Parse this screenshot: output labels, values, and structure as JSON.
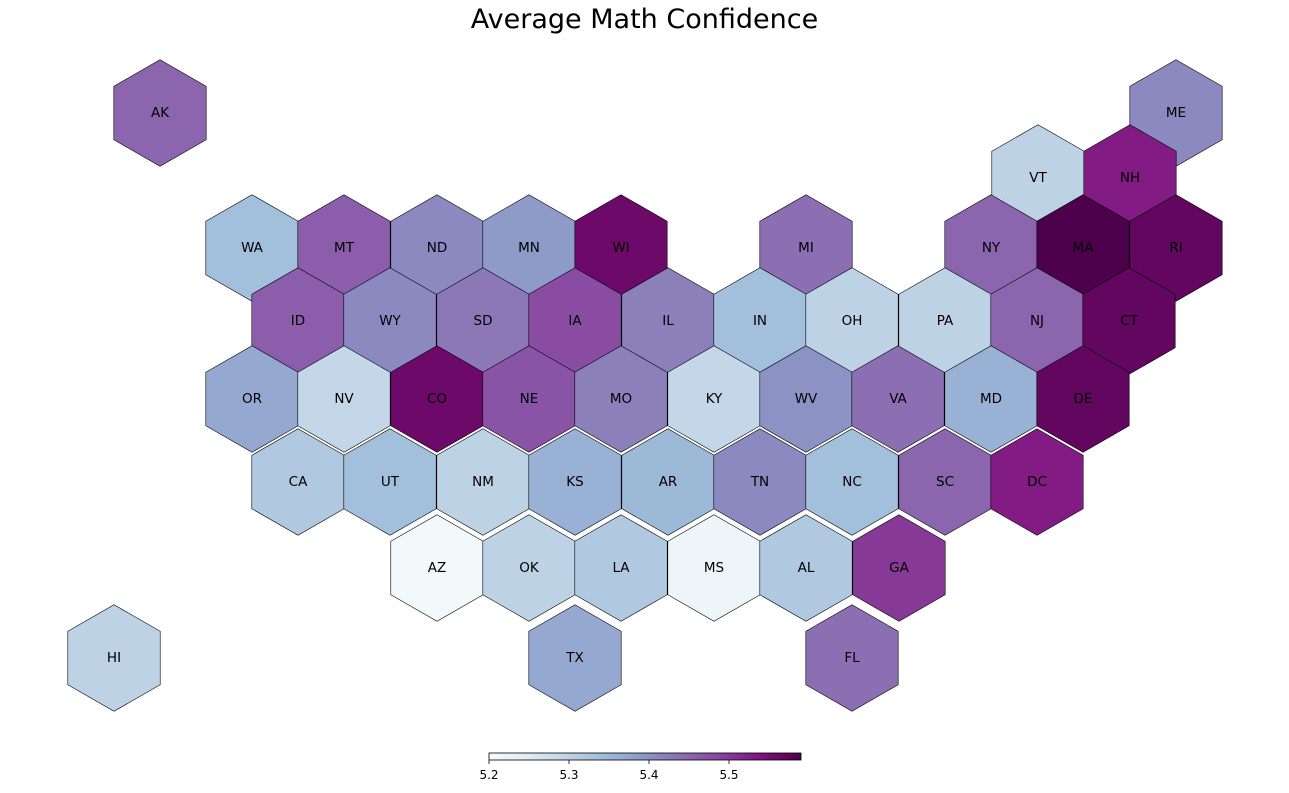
{
  "title": "Average Math Confidence",
  "map_data": {
    "type": "hex-tile-choropleth",
    "color_scale": {
      "colormap": "BuPu",
      "min": 5.2,
      "max": 5.59,
      "ticks": [
        5.2,
        5.3,
        5.4,
        5.5
      ],
      "tick_labels": [
        "5.2",
        "5.3",
        "5.4",
        "5.5"
      ],
      "stops": [
        "#f7fcfd",
        "#e0ecf4",
        "#bfd3e6",
        "#9ebcda",
        "#8c96c6",
        "#8c6bb1",
        "#88419d",
        "#810f7c",
        "#4d004b"
      ]
    },
    "states": [
      {
        "abbr": "AK",
        "value": 5.45
      },
      {
        "abbr": "ME",
        "value": 5.41
      },
      {
        "abbr": "VT",
        "value": 5.3
      },
      {
        "abbr": "NH",
        "value": 5.53
      },
      {
        "abbr": "WA",
        "value": 5.34
      },
      {
        "abbr": "MT",
        "value": 5.46
      },
      {
        "abbr": "ND",
        "value": 5.41
      },
      {
        "abbr": "MN",
        "value": 5.39
      },
      {
        "abbr": "WI",
        "value": 5.56
      },
      {
        "abbr": "MI",
        "value": 5.44
      },
      {
        "abbr": "NY",
        "value": 5.45
      },
      {
        "abbr": "MA",
        "value": 5.59
      },
      {
        "abbr": "RI",
        "value": 5.57
      },
      {
        "abbr": "ID",
        "value": 5.46
      },
      {
        "abbr": "WY",
        "value": 5.41
      },
      {
        "abbr": "SD",
        "value": 5.43
      },
      {
        "abbr": "IA",
        "value": 5.48
      },
      {
        "abbr": "IL",
        "value": 5.42
      },
      {
        "abbr": "IN",
        "value": 5.34
      },
      {
        "abbr": "OH",
        "value": 5.3
      },
      {
        "abbr": "PA",
        "value": 5.3
      },
      {
        "abbr": "NJ",
        "value": 5.45
      },
      {
        "abbr": "CT",
        "value": 5.57
      },
      {
        "abbr": "OR",
        "value": 5.37
      },
      {
        "abbr": "NV",
        "value": 5.29
      },
      {
        "abbr": "CO",
        "value": 5.56
      },
      {
        "abbr": "NE",
        "value": 5.47
      },
      {
        "abbr": "MO",
        "value": 5.42
      },
      {
        "abbr": "KY",
        "value": 5.29
      },
      {
        "abbr": "WV",
        "value": 5.4
      },
      {
        "abbr": "VA",
        "value": 5.44
      },
      {
        "abbr": "MD",
        "value": 5.36
      },
      {
        "abbr": "DE",
        "value": 5.57
      },
      {
        "abbr": "CA",
        "value": 5.32
      },
      {
        "abbr": "UT",
        "value": 5.34
      },
      {
        "abbr": "NM",
        "value": 5.3
      },
      {
        "abbr": "KS",
        "value": 5.36
      },
      {
        "abbr": "AR",
        "value": 5.35
      },
      {
        "abbr": "TN",
        "value": 5.41
      },
      {
        "abbr": "NC",
        "value": 5.34
      },
      {
        "abbr": "SC",
        "value": 5.45
      },
      {
        "abbr": "DC",
        "value": 5.53
      },
      {
        "abbr": "AZ",
        "value": 5.21
      },
      {
        "abbr": "OK",
        "value": 5.3
      },
      {
        "abbr": "LA",
        "value": 5.32
      },
      {
        "abbr": "MS",
        "value": 5.22
      },
      {
        "abbr": "AL",
        "value": 5.32
      },
      {
        "abbr": "GA",
        "value": 5.5
      },
      {
        "abbr": "HI",
        "value": 5.3
      },
      {
        "abbr": "TX",
        "value": 5.37
      },
      {
        "abbr": "FL",
        "value": 5.44
      }
    ]
  }
}
